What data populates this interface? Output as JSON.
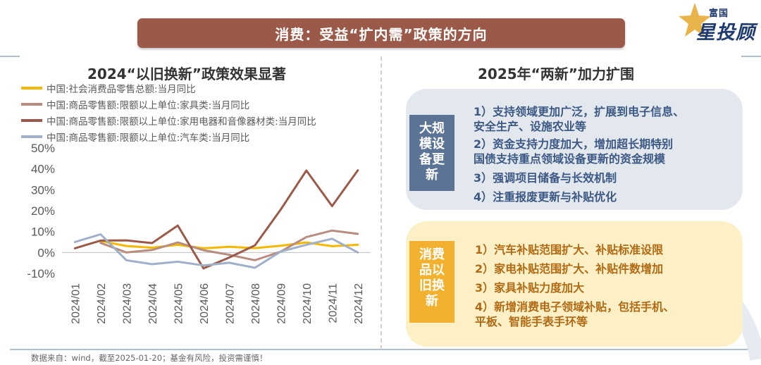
{
  "header": {
    "title": "消费：受益“扩内需”政策的方向"
  },
  "logo": {
    "brand_top": "富国",
    "brand_main": "星投顾",
    "icon": "star-icon"
  },
  "left_panel": {
    "title": "2024“以旧换新”政策效果显著"
  },
  "chart_data": {
    "type": "line",
    "title": "2024“以旧换新”政策效果显著",
    "categories": [
      "2024/01",
      "2024/02",
      "2024/03",
      "2024/04",
      "2024/05",
      "2024/06",
      "2024/07",
      "2024/08",
      "2024/09",
      "2024/10",
      "2024/11",
      "2024/12"
    ],
    "y_ticks": [
      "50%",
      "40%",
      "30%",
      "20%",
      "10%",
      "0%",
      "-10%"
    ],
    "ylim": [
      -10,
      50
    ],
    "grid": false,
    "legend_position": "top",
    "series": [
      {
        "name": "中国:社会消费品零售总额:当月同比",
        "color": "#f5b800",
        "values": [
          null,
          5.5,
          3.1,
          2.3,
          3.7,
          2.0,
          2.7,
          2.1,
          3.2,
          4.8,
          3.0,
          3.7
        ]
      },
      {
        "name": "中国:商品零售额:限额以上单位:家具类:当月同比",
        "color": "#b88c7e",
        "values": [
          null,
          4.6,
          0.0,
          1.2,
          4.8,
          1.1,
          -1.1,
          -3.7,
          0.4,
          7.4,
          10.5,
          8.9
        ]
      },
      {
        "name": "中国:商品零售额:限额以上单位:家用电器和音像器材类:当月同比",
        "color": "#9b5a49",
        "values": [
          2.0,
          5.7,
          5.8,
          4.5,
          12.9,
          -7.6,
          -2.4,
          3.4,
          20.5,
          39.2,
          22.2,
          39.3
        ]
      },
      {
        "name": "中国:商品零售额:限额以上单位:汽车类:当月同比",
        "color": "#9fb0c8",
        "values": [
          5.0,
          8.7,
          -3.7,
          -5.6,
          -4.4,
          -6.2,
          -4.9,
          -7.3,
          0.4,
          3.7,
          6.6,
          0.0
        ]
      }
    ]
  },
  "right_panel": {
    "title": "2025年“两新”加力扩围",
    "groups": [
      {
        "tag": "大规\n模设\n备更\n新",
        "items": [
          "1）支持领域更加广泛，扩展到电子信息、\n安全生产、设施农业等",
          "2）资金支持力度加大，增加超长期特别\n国债支持重点领域设备更新的资金规模",
          "3）强调项目储备与长效机制",
          "4）注重报废更新与补贴优化"
        ]
      },
      {
        "tag": "消费\n品以\n旧换\n新",
        "items": [
          "1）汽车补贴范围扩大、补贴标准设限",
          "2）家电补贴范围扩大、补贴件数增加",
          "3）家具补贴力度加大",
          "4）新增消费电子领域补贴，包括手机、\n平板、智能手表手环等"
        ]
      }
    ]
  },
  "footer": {
    "source": "数据来自：wind，截至2025-01-20；基金有风险，投资需谨慎！"
  },
  "colors": {
    "banner": "#9b5a49",
    "tag_blue": "#5b7394",
    "tag_yellow": "#f2b22f"
  }
}
